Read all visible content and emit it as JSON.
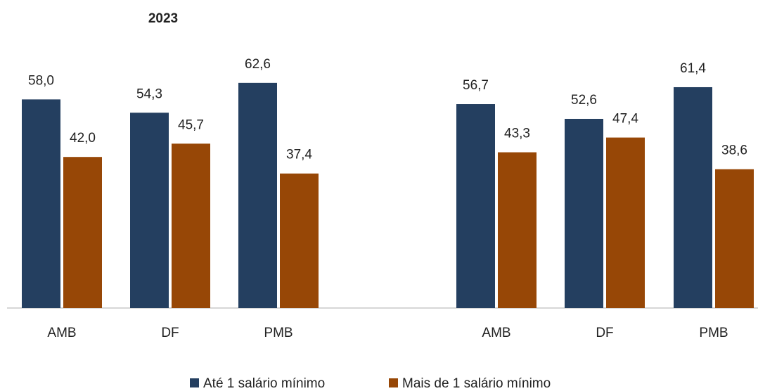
{
  "chart_data": {
    "type": "bar",
    "title": "2023",
    "categories": [
      "AMB",
      "DF",
      "PMB",
      "AMB",
      "DF",
      "PMB"
    ],
    "series": [
      {
        "name": "Até 1 salário mínimo",
        "color": "#243f60",
        "values": [
          58.0,
          54.3,
          62.6,
          56.7,
          52.6,
          61.4
        ],
        "value_labels": [
          "58,0",
          "54,3",
          "62,6",
          "56,7",
          "52,6",
          "61,4"
        ]
      },
      {
        "name": "Mais de 1 salário mínimo",
        "color": "#974706",
        "values": [
          42.0,
          45.7,
          37.4,
          43.3,
          47.4,
          38.6
        ],
        "value_labels": [
          "42,0",
          "45,7",
          "37,4",
          "43,3",
          "47,4",
          "38,6"
        ]
      }
    ],
    "ylim": [
      0,
      70
    ],
    "legend": "bottom"
  }
}
